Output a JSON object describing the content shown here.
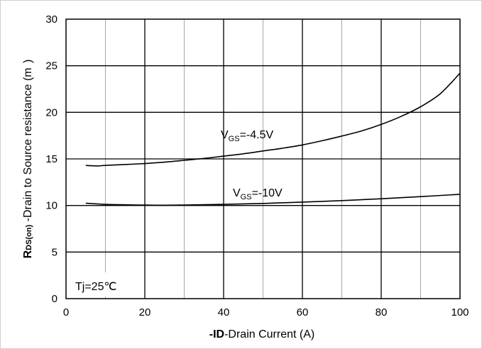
{
  "chart_data": {
    "type": "line",
    "xlabel_bold": "-ID",
    "xlabel_rest": "-Drain Current (A)",
    "ylabel_r": "R",
    "ylabel_sub": "DS(on)",
    "ylabel_rest": " -Drain to Source resistance (m  )",
    "xlim": [
      0,
      100
    ],
    "ylim": [
      0,
      30
    ],
    "xticks": [
      0,
      20,
      40,
      60,
      80,
      100
    ],
    "yticks": [
      0,
      5,
      10,
      15,
      20,
      25,
      30
    ],
    "x_minor_step": 10,
    "grid": true,
    "annotation": "Tj=25℃",
    "series": [
      {
        "name": "VGS=-4.5V",
        "label_main": "V",
        "label_sub": "GS",
        "label_tail": "=-4.5V",
        "x": [
          5,
          8,
          10,
          15,
          20,
          25,
          30,
          35,
          40,
          45,
          50,
          55,
          60,
          65,
          70,
          75,
          80,
          85,
          90,
          95,
          100
        ],
        "y": [
          14.3,
          14.25,
          14.3,
          14.4,
          14.5,
          14.65,
          14.85,
          15.05,
          15.3,
          15.55,
          15.85,
          16.15,
          16.5,
          16.95,
          17.45,
          18.0,
          18.7,
          19.55,
          20.6,
          22.0,
          24.2
        ]
      },
      {
        "name": "VGS=-10V",
        "label_main": "V",
        "label_sub": "GS",
        "label_tail": "=-10V",
        "x": [
          5,
          10,
          15,
          20,
          25,
          30,
          40,
          50,
          60,
          70,
          80,
          90,
          100
        ],
        "y": [
          10.25,
          10.12,
          10.07,
          10.04,
          10.03,
          10.05,
          10.12,
          10.22,
          10.36,
          10.52,
          10.72,
          10.95,
          11.2
        ]
      }
    ]
  }
}
